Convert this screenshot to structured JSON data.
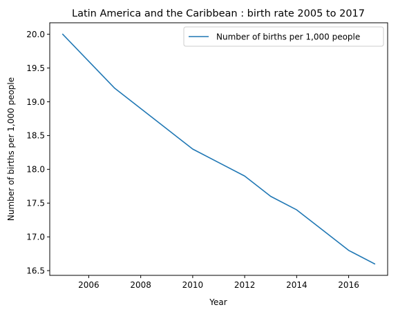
{
  "chart_data": {
    "type": "line",
    "title": "Latin America and the Caribbean : birth rate 2005 to 2017",
    "xlabel": "Year",
    "ylabel": "Number of births per 1,000 people",
    "xlim": [
      2004.5,
      2017.5
    ],
    "ylim": [
      16.43,
      20.17
    ],
    "xticks": [
      2006,
      2008,
      2010,
      2012,
      2014,
      2016
    ],
    "yticks": [
      16.5,
      17.0,
      17.5,
      18.0,
      18.5,
      19.0,
      19.5,
      20.0
    ],
    "grid": false,
    "legend_position": "top-right",
    "series": [
      {
        "name": "Number of births per 1,000 people",
        "color": "#1f77b4",
        "x": [
          2005,
          2006,
          2007,
          2008,
          2009,
          2010,
          2011,
          2012,
          2013,
          2014,
          2015,
          2016,
          2017
        ],
        "y": [
          20.0,
          19.6,
          19.2,
          18.9,
          18.6,
          18.3,
          18.1,
          17.9,
          17.6,
          17.4,
          17.1,
          16.8,
          16.6
        ]
      }
    ]
  }
}
